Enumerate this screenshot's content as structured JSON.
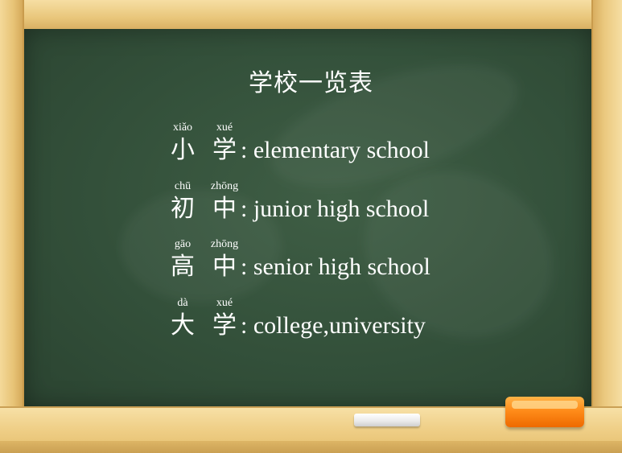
{
  "title": "学校一览表",
  "rows": [
    {
      "c1": "小",
      "c2": "学",
      "p1": "xiǎo",
      "p2": "xué",
      "meaning": ": elementary school"
    },
    {
      "c1": "初",
      "c2": "中",
      "p1": "chū",
      "p2": "zhōng",
      "meaning": ": junior high school"
    },
    {
      "c1": "高",
      "c2": "中",
      "p1": "gāo",
      "p2": "zhōng",
      "meaning": ": senior high school"
    },
    {
      "c1": "大",
      "c2": "学",
      "p1": "dà",
      "p2": "xué",
      "meaning": ": college,university"
    }
  ],
  "colors": {
    "board": "#33503a",
    "frame": "#eecf88",
    "text": "#ffffff",
    "eraser": "#ff8c1a",
    "chalk": "#ffffff"
  },
  "icons": {
    "chalk": "chalk-icon",
    "eraser": "eraser-icon"
  }
}
